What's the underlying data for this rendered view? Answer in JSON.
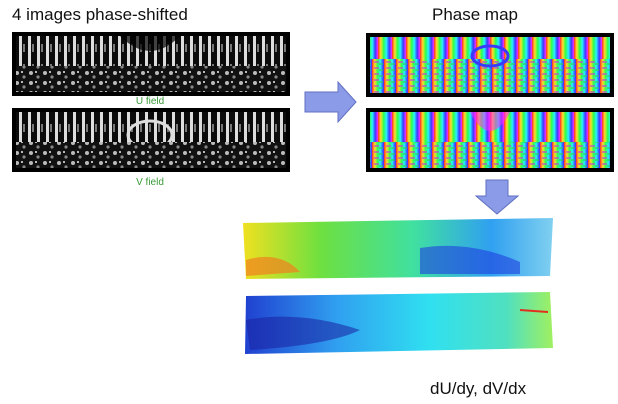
{
  "labels": {
    "left_title": "4 images phase-shifted",
    "right_title": "Phase map",
    "u_field": "U field",
    "v_field": "V field",
    "bottom_caption": "dU/dy, dV/dx"
  }
}
